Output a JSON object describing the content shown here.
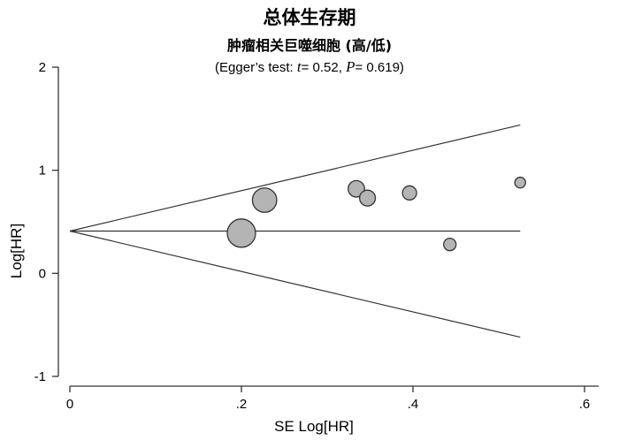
{
  "chart_data": {
    "type": "scatter",
    "title": "总体生存期",
    "subtitle": "肿瘤相关巨噬细胞 (高/低)",
    "stats": {
      "prefix": "(Egger’s test: ",
      "t_symbol": "t",
      "t_value": "= 0.52, ",
      "p_symbol": "P",
      "p_value": "= 0.619)"
    },
    "xlabel": "SE Log[HR]",
    "ylabel": "Log[HR]",
    "xlim": [
      0,
      0.6
    ],
    "ylim": [
      -1,
      2
    ],
    "xticks": [
      0,
      0.2,
      0.4,
      0.6
    ],
    "xtick_labels": [
      "0",
      ".2",
      ".4",
      ".6"
    ],
    "yticks": [
      -1,
      0,
      1,
      2
    ],
    "ytick_labels": [
      "-1",
      "0",
      "1",
      "2"
    ],
    "pooled_estimate": 0.41,
    "funnel_max_se": 0.525,
    "points": [
      {
        "x": 0.2,
        "y": 0.39,
        "weight": 1.0
      },
      {
        "x": 0.227,
        "y": 0.71,
        "weight": 0.86
      },
      {
        "x": 0.334,
        "y": 0.82,
        "weight": 0.58
      },
      {
        "x": 0.347,
        "y": 0.73,
        "weight": 0.56
      },
      {
        "x": 0.396,
        "y": 0.78,
        "weight": 0.5
      },
      {
        "x": 0.443,
        "y": 0.28,
        "weight": 0.44
      },
      {
        "x": 0.525,
        "y": 0.88,
        "weight": 0.38
      }
    ],
    "grid": false,
    "colors": {
      "marker_fill": "#b4b4b4",
      "marker_stroke": "#333333",
      "line": "#333333"
    }
  }
}
